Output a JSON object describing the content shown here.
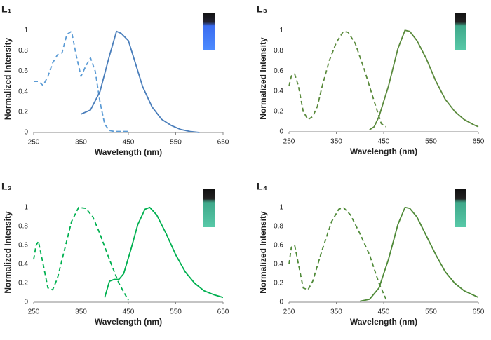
{
  "chart_data": [
    {
      "type": "line",
      "title": "L₁",
      "xlabel": "Wavelength (nm)",
      "ylabel": "Normalized Intensity",
      "xlim": [
        250,
        650
      ],
      "xticks": [
        250,
        350,
        450,
        550,
        650
      ],
      "ylim": [
        0,
        1.05
      ],
      "yticks": [
        0,
        0.2,
        0.4,
        0.6,
        0.8,
        1
      ],
      "series": [
        {
          "color": "#5b9bd5",
          "dashed": true,
          "x": [
            250,
            260,
            270,
            280,
            290,
            300,
            310,
            320,
            330,
            340,
            350,
            360,
            370,
            380,
            390,
            400,
            410,
            420,
            450
          ],
          "values": [
            0.5,
            0.5,
            0.46,
            0.55,
            0.68,
            0.76,
            0.78,
            0.96,
            0.99,
            0.75,
            0.55,
            0.65,
            0.73,
            0.6,
            0.3,
            0.08,
            0.02,
            0.01,
            0.01
          ]
        },
        {
          "color": "#4a7ebb",
          "dashed": false,
          "x": [
            350,
            370,
            390,
            410,
            425,
            435,
            450,
            460,
            480,
            500,
            520,
            540,
            560,
            580,
            600
          ],
          "values": [
            0.18,
            0.22,
            0.4,
            0.75,
            0.99,
            0.97,
            0.9,
            0.75,
            0.45,
            0.25,
            0.13,
            0.07,
            0.03,
            0.01,
            0
          ]
        }
      ]
    },
    {
      "type": "line",
      "title": "L₃",
      "xlabel": "Wavelength (nm)",
      "ylabel": "Normalized Intensity",
      "xlim": [
        250,
        650
      ],
      "xticks": [
        250,
        350,
        450,
        550,
        650
      ],
      "ylim": [
        0,
        1.05
      ],
      "yticks": [
        0,
        0.2,
        0.4,
        0.6,
        0.8,
        1
      ],
      "series": [
        {
          "color": "#5a8a3c",
          "dashed": true,
          "x": [
            250,
            255,
            262,
            270,
            280,
            290,
            300,
            310,
            320,
            335,
            350,
            365,
            375,
            390,
            410,
            430,
            445,
            455
          ],
          "values": [
            0.45,
            0.55,
            0.57,
            0.45,
            0.2,
            0.12,
            0.15,
            0.25,
            0.45,
            0.7,
            0.88,
            0.99,
            0.98,
            0.87,
            0.6,
            0.3,
            0.08,
            0.05
          ]
        },
        {
          "color": "#5a8a3c",
          "dashed": false,
          "x": [
            420,
            430,
            440,
            460,
            480,
            495,
            505,
            520,
            540,
            560,
            580,
            600,
            620,
            640,
            650
          ],
          "values": [
            0.02,
            0.05,
            0.15,
            0.45,
            0.82,
            1,
            0.99,
            0.9,
            0.72,
            0.5,
            0.32,
            0.2,
            0.12,
            0.07,
            0.05
          ]
        }
      ]
    },
    {
      "type": "line",
      "title": "L₂",
      "xlabel": "Wavelength (nm)",
      "ylabel": "Normalized Intensity",
      "xlim": [
        250,
        650
      ],
      "xticks": [
        250,
        350,
        450,
        550,
        650
      ],
      "ylim": [
        0,
        1.05
      ],
      "yticks": [
        0,
        0.2,
        0.4,
        0.6,
        0.8,
        1
      ],
      "series": [
        {
          "color": "#00b050",
          "dashed": true,
          "x": [
            250,
            255,
            260,
            270,
            280,
            290,
            300,
            315,
            330,
            345,
            360,
            375,
            390,
            410,
            430,
            450
          ],
          "values": [
            0.45,
            0.6,
            0.64,
            0.4,
            0.15,
            0.13,
            0.25,
            0.55,
            0.85,
            1,
            0.99,
            0.9,
            0.72,
            0.45,
            0.2,
            0.02
          ]
        },
        {
          "color": "#00b050",
          "dashed": false,
          "x": [
            400,
            410,
            420,
            430,
            440,
            455,
            470,
            485,
            495,
            510,
            530,
            550,
            570,
            590,
            610,
            630,
            650
          ],
          "values": [
            0.05,
            0.22,
            0.24,
            0.24,
            0.3,
            0.55,
            0.82,
            0.98,
            1,
            0.92,
            0.72,
            0.5,
            0.32,
            0.2,
            0.12,
            0.08,
            0.05
          ]
        }
      ]
    },
    {
      "type": "line",
      "title": "L₄",
      "xlabel": "Wavelength (nm)",
      "ylabel": "Normalized Intensity",
      "xlim": [
        250,
        650
      ],
      "xticks": [
        250,
        350,
        450,
        550,
        650
      ],
      "ylim": [
        0,
        1.05
      ],
      "yticks": [
        0,
        0.2,
        0.4,
        0.6,
        0.8,
        1
      ],
      "series": [
        {
          "color": "#4f8a38",
          "dashed": true,
          "x": [
            250,
            255,
            262,
            270,
            280,
            290,
            300,
            320,
            340,
            355,
            365,
            380,
            400,
            420,
            440,
            455
          ],
          "values": [
            0.4,
            0.58,
            0.6,
            0.4,
            0.15,
            0.13,
            0.22,
            0.55,
            0.85,
            0.98,
            1,
            0.92,
            0.72,
            0.5,
            0.2,
            0.03
          ]
        },
        {
          "color": "#4f8a38",
          "dashed": false,
          "x": [
            400,
            420,
            440,
            460,
            480,
            495,
            505,
            520,
            540,
            560,
            580,
            600,
            620,
            650
          ],
          "values": [
            0.01,
            0.03,
            0.15,
            0.45,
            0.82,
            1,
            0.99,
            0.9,
            0.7,
            0.5,
            0.32,
            0.2,
            0.12,
            0.05
          ]
        }
      ]
    }
  ]
}
